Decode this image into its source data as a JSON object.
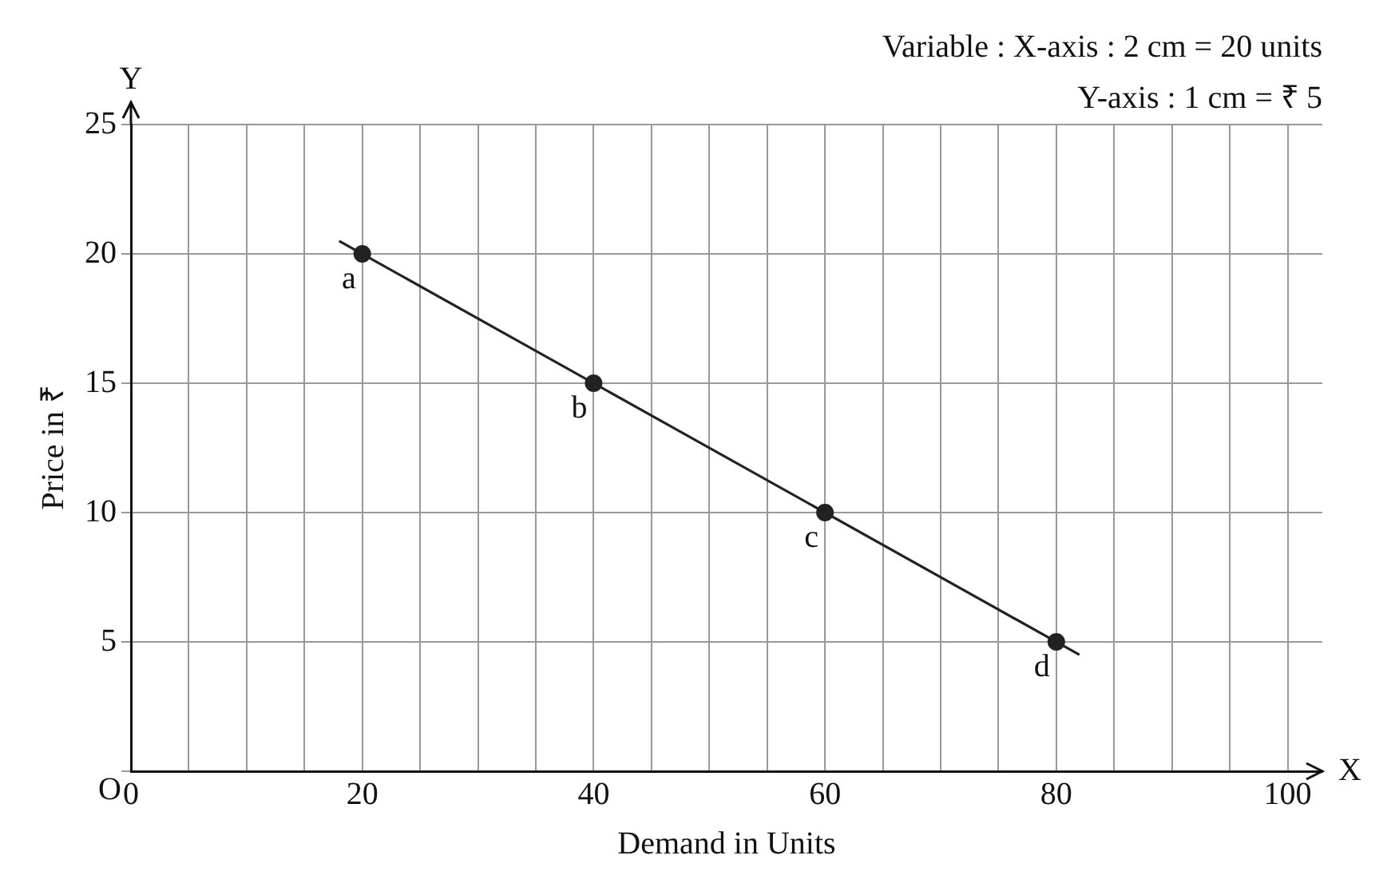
{
  "chart_data": {
    "type": "line",
    "xlabel": "Demand in Units",
    "ylabel": "Price in ₹",
    "xlim": [
      0,
      103
    ],
    "ylim": [
      0,
      25
    ],
    "xticks": [
      0,
      {
        "value": 5,
        "label": null
      },
      {
        "value": 10,
        "label": null
      },
      {
        "value": 15,
        "label": null
      },
      20,
      {
        "value": 25,
        "label": null
      },
      {
        "value": 30,
        "label": null
      },
      {
        "value": 35,
        "label": null
      },
      40,
      {
        "value": 45,
        "label": null
      },
      {
        "value": 50,
        "label": null
      },
      {
        "value": 55,
        "label": null
      },
      60,
      {
        "value": 65,
        "label": null
      },
      {
        "value": 70,
        "label": null
      },
      {
        "value": 75,
        "label": null
      },
      80,
      {
        "value": 85,
        "label": null
      },
      {
        "value": 90,
        "label": null
      },
      {
        "value": 95,
        "label": null
      },
      100
    ],
    "yticks": [
      {
        "value": 0,
        "label": null
      },
      5,
      10,
      15,
      20,
      25
    ],
    "grid": true,
    "series": [
      {
        "color": "#222222",
        "x": [
          18,
          82
        ],
        "values": [
          20.5,
          4.5
        ],
        "marker": "none"
      },
      {
        "type": "scatter",
        "color": "#222222",
        "x": [
          20,
          40,
          60,
          80
        ],
        "values": [
          20,
          15,
          10,
          5
        ],
        "marker": "circle"
      }
    ],
    "annotations": [
      "Variable : X-axis : 2 cm = 20 units",
      "Y-axis : 1 cm = ₹ 5",
      "X",
      "Y",
      "O",
      {
        "text": "a",
        "x": 20,
        "y": 20
      },
      {
        "text": "b",
        "x": 40,
        "y": 15
      },
      {
        "text": "c",
        "x": 60,
        "y": 10
      },
      {
        "text": "d",
        "x": 80,
        "y": 5
      }
    ]
  }
}
